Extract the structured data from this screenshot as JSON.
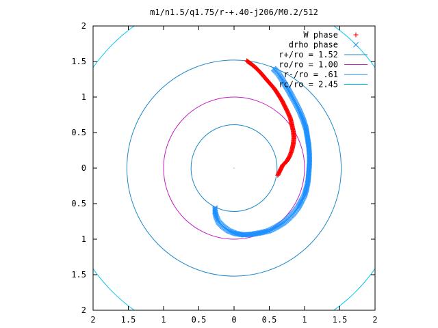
{
  "chart_data": {
    "type": "scatter",
    "title": "m1/n1.5/q1.75/r-+.40-j206/M0.2/512",
    "xlim": [
      -2,
      2
    ],
    "ylim": [
      -2,
      2
    ],
    "grid": false,
    "legend_position": "top-right",
    "x_ticks": [
      {
        "value": -2,
        "label": "2"
      },
      {
        "value": -1.5,
        "label": "1.5"
      },
      {
        "value": -1,
        "label": "1"
      },
      {
        "value": -0.5,
        "label": "0.5"
      },
      {
        "value": 0,
        "label": "0"
      },
      {
        "value": 0.5,
        "label": "0.5"
      },
      {
        "value": 1,
        "label": "1"
      },
      {
        "value": 1.5,
        "label": "1.5"
      },
      {
        "value": 2,
        "label": "2"
      }
    ],
    "y_ticks": [
      {
        "value": 2,
        "label": "2"
      },
      {
        "value": 1.5,
        "label": "1.5"
      },
      {
        "value": 1,
        "label": "1"
      },
      {
        "value": 0.5,
        "label": "0.5"
      },
      {
        "value": 0,
        "label": "0"
      },
      {
        "value": -0.5,
        "label": "0.5"
      },
      {
        "value": -1,
        "label": "1"
      },
      {
        "value": -1.5,
        "label": "1.5"
      },
      {
        "value": -2,
        "label": "2"
      }
    ],
    "series": [
      {
        "name": "W phase",
        "marker": "plus",
        "color": "#ff0000",
        "points": [
          [
            0.18,
            1.51
          ],
          [
            0.25,
            1.46
          ],
          [
            0.31,
            1.41
          ],
          [
            0.37,
            1.35
          ],
          [
            0.43,
            1.28
          ],
          [
            0.5,
            1.2
          ],
          [
            0.57,
            1.12
          ],
          [
            0.63,
            1.03
          ],
          [
            0.68,
            0.95
          ],
          [
            0.72,
            0.87
          ],
          [
            0.76,
            0.79
          ],
          [
            0.8,
            0.7
          ],
          [
            0.82,
            0.61
          ],
          [
            0.84,
            0.52
          ],
          [
            0.85,
            0.43
          ],
          [
            0.84,
            0.34
          ],
          [
            0.82,
            0.25
          ],
          [
            0.79,
            0.17
          ],
          [
            0.75,
            0.1
          ],
          [
            0.69,
            0.04
          ],
          [
            0.62,
            -0.1
          ]
        ]
      },
      {
        "name": "drho phase",
        "marker": "cross",
        "color": "#1e90ff",
        "points": [
          [
            0.56,
            1.4
          ],
          [
            0.6,
            1.36
          ],
          [
            0.64,
            1.31
          ],
          [
            0.68,
            1.25
          ],
          [
            0.72,
            1.18
          ],
          [
            0.77,
            1.1
          ],
          [
            0.82,
            1.01
          ],
          [
            0.88,
            0.9
          ],
          [
            0.93,
            0.8
          ],
          [
            0.98,
            0.68
          ],
          [
            1.02,
            0.56
          ],
          [
            1.04,
            0.44
          ],
          [
            1.06,
            0.31
          ],
          [
            1.07,
            0.18
          ],
          [
            1.07,
            0.06
          ],
          [
            1.06,
            -0.06
          ],
          [
            1.05,
            -0.18
          ],
          [
            1.03,
            -0.28
          ],
          [
            1.0,
            -0.38
          ],
          [
            0.96,
            -0.46
          ],
          [
            0.91,
            -0.55
          ],
          [
            0.85,
            -0.63
          ],
          [
            0.78,
            -0.7
          ],
          [
            0.7,
            -0.77
          ],
          [
            0.6,
            -0.83
          ],
          [
            0.5,
            -0.88
          ],
          [
            0.38,
            -0.91
          ],
          [
            0.26,
            -0.93
          ],
          [
            0.14,
            -0.94
          ],
          [
            0.02,
            -0.92
          ],
          [
            -0.08,
            -0.88
          ],
          [
            -0.16,
            -0.82
          ],
          [
            -0.22,
            -0.76
          ],
          [
            -0.25,
            -0.69
          ],
          [
            -0.27,
            -0.62
          ],
          [
            -0.27,
            -0.56
          ]
        ]
      },
      {
        "name": "r+/ro = 1.52",
        "type": "circle",
        "radius": 1.52,
        "color": "#1e88c8"
      },
      {
        "name": "ro/ro = 1.00",
        "type": "circle",
        "radius": 1.0,
        "color": "#c020c0"
      },
      {
        "name": "r-/ro = .61",
        "type": "circle",
        "radius": 0.61,
        "color": "#1e88c8"
      },
      {
        "name": "rc/ro = 2.45",
        "type": "circle",
        "radius": 2.45,
        "color": "#00c8f0"
      }
    ]
  }
}
